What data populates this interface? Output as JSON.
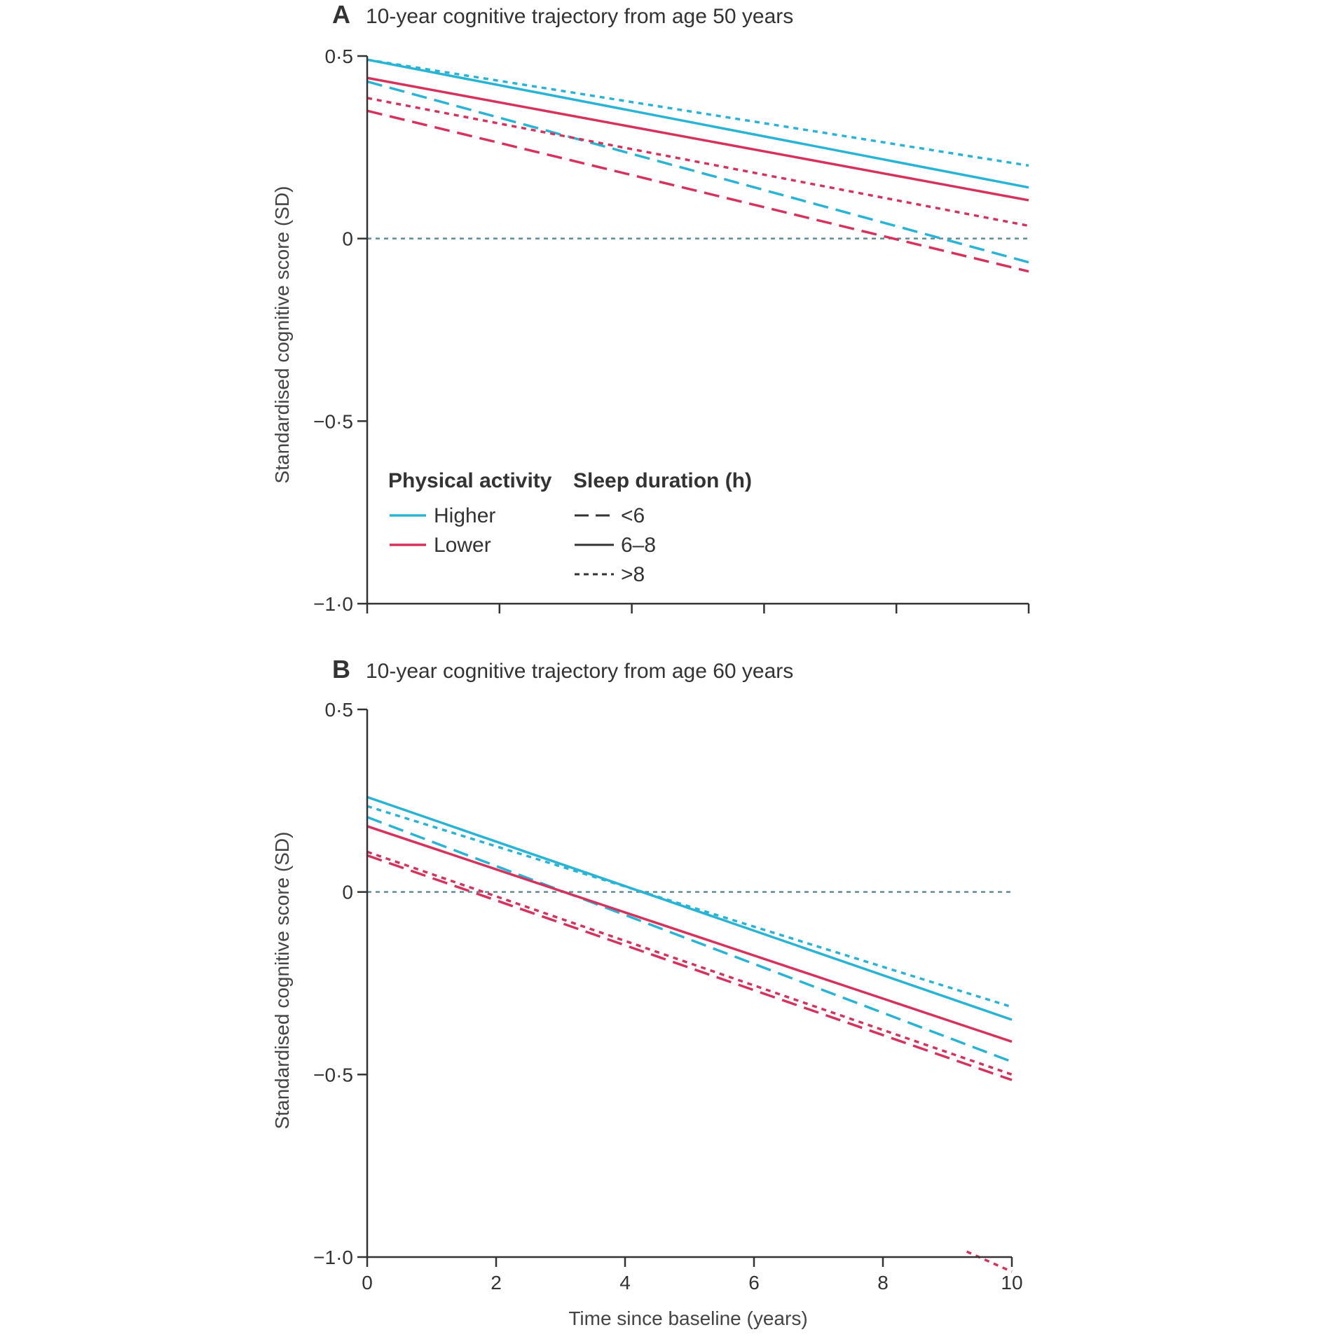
{
  "chart_data": [
    {
      "type": "line",
      "panel": "A",
      "title": "10-year cognitive trajectory from age 50 years",
      "xlabel": "",
      "ylabel": "Standardised cognitive score (SD)",
      "xlim": [
        0,
        10
      ],
      "ylim": [
        -1.0,
        0.5
      ],
      "yticks": [
        "0·5",
        "0",
        "−0·5",
        "−1·0"
      ],
      "ytick_values": [
        0.5,
        0,
        -0.5,
        -1.0
      ],
      "xticks": [
        0,
        2,
        4,
        6,
        8,
        10
      ],
      "xtick_labels": [],
      "reference_line": 0,
      "series": [
        {
          "activity": "Higher",
          "sleep": "<6",
          "color": "#29B4D6",
          "x": [
            0,
            10
          ],
          "y": [
            0.43,
            -0.065
          ]
        },
        {
          "activity": "Higher",
          "sleep": "6–8",
          "color": "#29B4D6",
          "x": [
            0,
            10
          ],
          "y": [
            0.49,
            0.14
          ]
        },
        {
          "activity": "Higher",
          "sleep": ">8",
          "color": "#29B4D6",
          "x": [
            0,
            10
          ],
          "y": [
            0.49,
            0.2
          ]
        },
        {
          "activity": "Lower",
          "sleep": "<6",
          "color": "#D6335C",
          "x": [
            0,
            10
          ],
          "y": [
            0.35,
            -0.09
          ]
        },
        {
          "activity": "Lower",
          "sleep": "6–8",
          "color": "#D6335C",
          "x": [
            0,
            10
          ],
          "y": [
            0.44,
            0.105
          ]
        },
        {
          "activity": "Lower",
          "sleep": ">8",
          "color": "#D6335C",
          "x": [
            0,
            10
          ],
          "y": [
            0.385,
            0.035
          ]
        }
      ],
      "legend": {
        "position": "lower-left",
        "activity_title": "Physical activity",
        "activity_items": [
          {
            "label": "Higher",
            "color": "#29B4D6"
          },
          {
            "label": "Lower",
            "color": "#D6335C"
          }
        ],
        "sleep_title": "Sleep duration (h)",
        "sleep_items": [
          {
            "label": "<6",
            "dash": "dashed"
          },
          {
            "label": "6–8",
            "dash": "solid"
          },
          {
            "label": ">8",
            "dash": "dotted"
          }
        ]
      }
    },
    {
      "type": "line",
      "panel": "B",
      "title": "10-year cognitive trajectory from age 60 years",
      "xlabel": "Time since baseline (years)",
      "ylabel": "Standardised cognitive score (SD)",
      "xlim": [
        0,
        10
      ],
      "ylim": [
        -1.0,
        0.5
      ],
      "yticks": [
        "0·5",
        "0",
        "−0·5",
        "−1·0"
      ],
      "ytick_values": [
        0.5,
        0,
        -0.5,
        -1.0
      ],
      "xticks": [
        0,
        2,
        4,
        6,
        8,
        10
      ],
      "xtick_labels": [
        "0",
        "2",
        "4",
        "6",
        "8",
        "10"
      ],
      "reference_line": 0,
      "series": [
        {
          "activity": "Higher",
          "sleep": "<6",
          "color": "#29B4D6",
          "x": [
            0,
            10
          ],
          "y": [
            0.205,
            -0.465
          ]
        },
        {
          "activity": "Higher",
          "sleep": "6–8",
          "color": "#29B4D6",
          "x": [
            0,
            10
          ],
          "y": [
            0.26,
            -0.35
          ]
        },
        {
          "activity": "Higher",
          "sleep": ">8",
          "color": "#29B4D6",
          "x": [
            0,
            10
          ],
          "y": [
            0.235,
            -0.315
          ]
        },
        {
          "activity": "Lower",
          "sleep": "<6",
          "color": "#D6335C",
          "x": [
            0,
            10
          ],
          "y": [
            0.1,
            -0.515
          ]
        },
        {
          "activity": "Lower",
          "sleep": "6–8",
          "color": "#D6335C",
          "x": [
            0,
            10
          ],
          "y": [
            0.18,
            -0.41
          ]
        },
        {
          "activity": "Lower",
          "sleep": ">8",
          "color": "#D6335C",
          "x": [
            0,
            10
          ],
          "y": [
            0.11,
            -0.5
          ]
        },
        {
          "activity": "Lower",
          "sleep": ">8",
          "color": "#D6335C",
          "x": [
            9.3,
            10
          ],
          "y": [
            -0.985,
            -1.04
          ]
        }
      ]
    }
  ]
}
